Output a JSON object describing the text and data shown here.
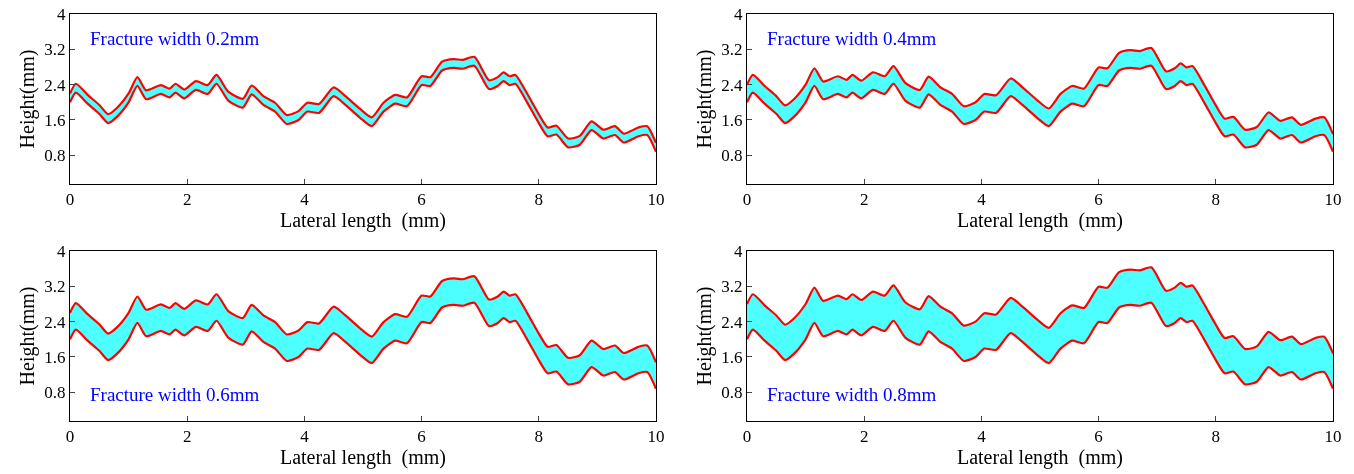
{
  "chart_data": [
    {
      "type": "line",
      "xlabel": "Lateral length  (mm)",
      "ylabel": "Height(mm)",
      "annotations": [
        "Fracture width 0.2mm"
      ],
      "xlim": [
        0,
        10
      ],
      "xticks": [
        0,
        2,
        4,
        6,
        8,
        10
      ],
      "ylim": [
        0.15,
        4
      ],
      "yticks": [
        0.8,
        1.6,
        2.4,
        3.2,
        4
      ],
      "x": [
        0,
        0.1,
        0.3,
        0.5,
        0.65,
        0.8,
        1.0,
        1.15,
        1.3,
        1.55,
        1.7,
        1.8,
        1.95,
        2.15,
        2.35,
        2.5,
        2.7,
        2.95,
        3.1,
        3.3,
        3.5,
        3.7,
        3.9,
        4.05,
        4.25,
        4.5,
        4.7,
        4.95,
        5.15,
        5.35,
        5.55,
        5.75,
        6.0,
        6.15,
        6.35,
        6.55,
        6.7,
        6.9,
        7.15,
        7.3,
        7.4,
        7.5,
        7.6,
        7.8,
        8.0,
        8.15,
        8.3,
        8.5,
        8.7,
        8.9,
        9.1,
        9.3,
        9.45,
        9.7,
        9.85,
        10
      ],
      "series": [
        {
          "color": "#ff0000",
          "values": [
            2.0,
            2.22,
            1.97,
            1.74,
            1.53,
            1.67,
            2.0,
            2.37,
            2.07,
            2.19,
            2.11,
            2.22,
            2.09,
            2.28,
            2.19,
            2.42,
            2.04,
            1.88,
            2.18,
            1.94,
            1.79,
            1.51,
            1.6,
            1.79,
            1.76,
            2.14,
            1.94,
            1.65,
            1.46,
            1.79,
            1.97,
            1.91,
            2.39,
            2.37,
            2.72,
            2.78,
            2.76,
            2.83,
            2.3,
            2.37,
            2.48,
            2.39,
            2.42,
            2.0,
            1.53,
            1.23,
            1.27,
            0.98,
            1.04,
            1.37,
            1.18,
            1.26,
            1.09,
            1.23,
            1.26,
            0.88
          ]
        },
        {
          "type": "area",
          "color": "#4dffff",
          "values": [
            2.2,
            2.42,
            2.17,
            1.94,
            1.73,
            1.87,
            2.2,
            2.57,
            2.27,
            2.39,
            2.31,
            2.42,
            2.29,
            2.48,
            2.39,
            2.62,
            2.24,
            2.08,
            2.38,
            2.14,
            1.99,
            1.71,
            1.8,
            1.99,
            1.96,
            2.34,
            2.14,
            1.85,
            1.66,
            1.99,
            2.17,
            2.11,
            2.59,
            2.57,
            2.92,
            2.98,
            2.96,
            3.03,
            2.5,
            2.57,
            2.68,
            2.59,
            2.62,
            2.2,
            1.73,
            1.43,
            1.47,
            1.18,
            1.24,
            1.57,
            1.38,
            1.46,
            1.29,
            1.43,
            1.46,
            1.08
          ]
        },
        {
          "color": "#ff0000",
          "values": [
            2.2,
            2.42,
            2.17,
            1.94,
            1.73,
            1.87,
            2.2,
            2.57,
            2.27,
            2.39,
            2.31,
            2.42,
            2.29,
            2.48,
            2.39,
            2.62,
            2.24,
            2.08,
            2.38,
            2.14,
            1.99,
            1.71,
            1.8,
            1.99,
            1.96,
            2.34,
            2.14,
            1.85,
            1.66,
            1.99,
            2.17,
            2.11,
            2.59,
            2.57,
            2.92,
            2.98,
            2.96,
            3.03,
            2.5,
            2.57,
            2.68,
            2.59,
            2.62,
            2.2,
            1.73,
            1.43,
            1.47,
            1.18,
            1.24,
            1.57,
            1.38,
            1.46,
            1.29,
            1.43,
            1.46,
            1.08
          ]
        }
      ]
    },
    {
      "type": "line",
      "xlabel": "Lateral length  (mm)",
      "ylabel": "Height(mm)",
      "annotations": [
        "Fracture width 0.4mm"
      ],
      "xlim": [
        0,
        10
      ],
      "xticks": [
        0,
        2,
        4,
        6,
        8,
        10
      ],
      "ylim": [
        0.15,
        4
      ],
      "yticks": [
        0.8,
        1.6,
        2.4,
        3.2,
        4
      ],
      "x": [
        0,
        0.1,
        0.3,
        0.5,
        0.65,
        0.8,
        1.0,
        1.15,
        1.3,
        1.55,
        1.7,
        1.8,
        1.95,
        2.15,
        2.35,
        2.5,
        2.7,
        2.95,
        3.1,
        3.3,
        3.5,
        3.7,
        3.9,
        4.05,
        4.25,
        4.5,
        4.7,
        4.95,
        5.15,
        5.35,
        5.55,
        5.75,
        6.0,
        6.15,
        6.35,
        6.55,
        6.7,
        6.9,
        7.15,
        7.3,
        7.4,
        7.5,
        7.6,
        7.8,
        8.0,
        8.15,
        8.3,
        8.5,
        8.7,
        8.9,
        9.1,
        9.3,
        9.45,
        9.7,
        9.85,
        10
      ],
      "series": [
        {
          "color": "#ff0000",
          "values": [
            2.0,
            2.22,
            1.97,
            1.74,
            1.53,
            1.67,
            2.0,
            2.37,
            2.07,
            2.19,
            2.11,
            2.22,
            2.09,
            2.28,
            2.19,
            2.42,
            2.04,
            1.88,
            2.18,
            1.94,
            1.79,
            1.51,
            1.6,
            1.79,
            1.76,
            2.14,
            1.94,
            1.65,
            1.46,
            1.79,
            1.97,
            1.91,
            2.39,
            2.37,
            2.72,
            2.78,
            2.76,
            2.83,
            2.3,
            2.37,
            2.48,
            2.39,
            2.42,
            2.0,
            1.53,
            1.23,
            1.27,
            0.98,
            1.04,
            1.37,
            1.18,
            1.26,
            1.09,
            1.23,
            1.26,
            0.88
          ]
        },
        {
          "type": "area",
          "color": "#4dffff",
          "values": [
            2.4,
            2.62,
            2.37,
            2.14,
            1.93,
            2.07,
            2.4,
            2.77,
            2.47,
            2.59,
            2.51,
            2.62,
            2.49,
            2.68,
            2.59,
            2.82,
            2.44,
            2.28,
            2.58,
            2.34,
            2.19,
            1.91,
            2.0,
            2.19,
            2.16,
            2.54,
            2.34,
            2.05,
            1.86,
            2.19,
            2.37,
            2.31,
            2.79,
            2.77,
            3.12,
            3.18,
            3.16,
            3.23,
            2.7,
            2.77,
            2.88,
            2.79,
            2.82,
            2.4,
            1.93,
            1.63,
            1.67,
            1.38,
            1.44,
            1.77,
            1.58,
            1.66,
            1.49,
            1.63,
            1.66,
            1.28
          ]
        },
        {
          "color": "#ff0000",
          "values": [
            2.4,
            2.62,
            2.37,
            2.14,
            1.93,
            2.07,
            2.4,
            2.77,
            2.47,
            2.59,
            2.51,
            2.62,
            2.49,
            2.68,
            2.59,
            2.82,
            2.44,
            2.28,
            2.58,
            2.34,
            2.19,
            1.91,
            2.0,
            2.19,
            2.16,
            2.54,
            2.34,
            2.05,
            1.86,
            2.19,
            2.37,
            2.31,
            2.79,
            2.77,
            3.12,
            3.18,
            3.16,
            3.23,
            2.7,
            2.77,
            2.88,
            2.79,
            2.82,
            2.4,
            1.93,
            1.63,
            1.67,
            1.38,
            1.44,
            1.77,
            1.58,
            1.66,
            1.49,
            1.63,
            1.66,
            1.28
          ]
        }
      ]
    },
    {
      "type": "line",
      "xlabel": "Lateral length  (mm)",
      "ylabel": "Height(mm)",
      "annotations": [
        "Fracture width 0.6mm"
      ],
      "xlim": [
        0,
        10
      ],
      "xticks": [
        0,
        2,
        4,
        6,
        8,
        10
      ],
      "ylim": [
        0.15,
        4
      ],
      "yticks": [
        0.8,
        1.6,
        2.4,
        3.2,
        4
      ],
      "x": [
        0,
        0.1,
        0.3,
        0.5,
        0.65,
        0.8,
        1.0,
        1.15,
        1.3,
        1.55,
        1.7,
        1.8,
        1.95,
        2.15,
        2.35,
        2.5,
        2.7,
        2.95,
        3.1,
        3.3,
        3.5,
        3.7,
        3.9,
        4.05,
        4.25,
        4.5,
        4.7,
        4.95,
        5.15,
        5.35,
        5.55,
        5.75,
        6.0,
        6.15,
        6.35,
        6.55,
        6.7,
        6.9,
        7.15,
        7.3,
        7.4,
        7.5,
        7.6,
        7.8,
        8.0,
        8.15,
        8.3,
        8.5,
        8.7,
        8.9,
        9.1,
        9.3,
        9.45,
        9.7,
        9.85,
        10
      ],
      "series": [
        {
          "color": "#ff0000",
          "values": [
            2.0,
            2.22,
            1.97,
            1.74,
            1.53,
            1.67,
            2.0,
            2.37,
            2.07,
            2.19,
            2.11,
            2.22,
            2.09,
            2.28,
            2.19,
            2.42,
            2.04,
            1.88,
            2.18,
            1.94,
            1.79,
            1.51,
            1.6,
            1.79,
            1.76,
            2.14,
            1.94,
            1.65,
            1.46,
            1.79,
            1.97,
            1.91,
            2.39,
            2.37,
            2.72,
            2.78,
            2.76,
            2.83,
            2.3,
            2.37,
            2.48,
            2.39,
            2.42,
            2.0,
            1.53,
            1.23,
            1.27,
            0.98,
            1.04,
            1.37,
            1.18,
            1.26,
            1.09,
            1.23,
            1.26,
            0.88
          ]
        },
        {
          "type": "area",
          "color": "#4dffff",
          "values": [
            2.6,
            2.82,
            2.57,
            2.34,
            2.13,
            2.27,
            2.6,
            2.97,
            2.67,
            2.79,
            2.71,
            2.82,
            2.69,
            2.88,
            2.79,
            3.02,
            2.64,
            2.48,
            2.78,
            2.54,
            2.39,
            2.11,
            2.2,
            2.39,
            2.36,
            2.74,
            2.54,
            2.25,
            2.06,
            2.39,
            2.57,
            2.51,
            2.99,
            2.97,
            3.32,
            3.38,
            3.36,
            3.43,
            2.9,
            2.97,
            3.08,
            2.99,
            3.02,
            2.6,
            2.13,
            1.83,
            1.87,
            1.58,
            1.64,
            1.97,
            1.78,
            1.86,
            1.69,
            1.83,
            1.86,
            1.48
          ]
        },
        {
          "color": "#ff0000",
          "values": [
            2.6,
            2.82,
            2.57,
            2.34,
            2.13,
            2.27,
            2.6,
            2.97,
            2.67,
            2.79,
            2.71,
            2.82,
            2.69,
            2.88,
            2.79,
            3.02,
            2.64,
            2.48,
            2.78,
            2.54,
            2.39,
            2.11,
            2.2,
            2.39,
            2.36,
            2.74,
            2.54,
            2.25,
            2.06,
            2.39,
            2.57,
            2.51,
            2.99,
            2.97,
            3.32,
            3.38,
            3.36,
            3.43,
            2.9,
            2.97,
            3.08,
            2.99,
            3.02,
            2.6,
            2.13,
            1.83,
            1.87,
            1.58,
            1.64,
            1.97,
            1.78,
            1.86,
            1.69,
            1.83,
            1.86,
            1.48
          ]
        }
      ]
    },
    {
      "type": "line",
      "xlabel": "Lateral length  (mm)",
      "ylabel": "Height(mm)",
      "annotations": [
        "Fracture width 0.8mm"
      ],
      "xlim": [
        0,
        10
      ],
      "xticks": [
        0,
        2,
        4,
        6,
        8,
        10
      ],
      "ylim": [
        0.15,
        4
      ],
      "yticks": [
        0.8,
        1.6,
        2.4,
        3.2,
        4
      ],
      "x": [
        0,
        0.1,
        0.3,
        0.5,
        0.65,
        0.8,
        1.0,
        1.15,
        1.3,
        1.55,
        1.7,
        1.8,
        1.95,
        2.15,
        2.35,
        2.5,
        2.7,
        2.95,
        3.1,
        3.3,
        3.5,
        3.7,
        3.9,
        4.05,
        4.25,
        4.5,
        4.7,
        4.95,
        5.15,
        5.35,
        5.55,
        5.75,
        6.0,
        6.15,
        6.35,
        6.55,
        6.7,
        6.9,
        7.15,
        7.3,
        7.4,
        7.5,
        7.6,
        7.8,
        8.0,
        8.15,
        8.3,
        8.5,
        8.7,
        8.9,
        9.1,
        9.3,
        9.45,
        9.7,
        9.85,
        10
      ],
      "series": [
        {
          "color": "#ff0000",
          "values": [
            2.0,
            2.22,
            1.97,
            1.74,
            1.53,
            1.67,
            2.0,
            2.37,
            2.07,
            2.19,
            2.11,
            2.22,
            2.09,
            2.28,
            2.19,
            2.42,
            2.04,
            1.88,
            2.18,
            1.94,
            1.79,
            1.51,
            1.6,
            1.79,
            1.76,
            2.14,
            1.94,
            1.65,
            1.46,
            1.79,
            1.97,
            1.91,
            2.39,
            2.37,
            2.72,
            2.78,
            2.76,
            2.83,
            2.3,
            2.37,
            2.48,
            2.39,
            2.42,
            2.0,
            1.53,
            1.23,
            1.27,
            0.98,
            1.04,
            1.37,
            1.18,
            1.26,
            1.09,
            1.23,
            1.26,
            0.88
          ]
        },
        {
          "type": "area",
          "color": "#4dffff",
          "values": [
            2.8,
            3.02,
            2.77,
            2.54,
            2.33,
            2.47,
            2.8,
            3.17,
            2.87,
            2.99,
            2.91,
            3.02,
            2.89,
            3.08,
            2.99,
            3.22,
            2.84,
            2.68,
            2.98,
            2.74,
            2.59,
            2.31,
            2.4,
            2.59,
            2.56,
            2.94,
            2.74,
            2.45,
            2.26,
            2.59,
            2.77,
            2.71,
            3.19,
            3.17,
            3.52,
            3.58,
            3.56,
            3.63,
            3.1,
            3.17,
            3.28,
            3.19,
            3.22,
            2.8,
            2.33,
            2.03,
            2.07,
            1.78,
            1.84,
            2.17,
            1.98,
            2.06,
            1.89,
            2.03,
            2.06,
            1.68
          ]
        },
        {
          "color": "#ff0000",
          "values": [
            2.8,
            3.02,
            2.77,
            2.54,
            2.33,
            2.47,
            2.8,
            3.17,
            2.87,
            2.99,
            2.91,
            3.02,
            2.89,
            3.08,
            2.99,
            3.22,
            2.84,
            2.68,
            2.98,
            2.74,
            2.59,
            2.31,
            2.4,
            2.59,
            2.56,
            2.94,
            2.74,
            2.45,
            2.26,
            2.59,
            2.77,
            2.71,
            3.19,
            3.17,
            3.52,
            3.58,
            3.56,
            3.63,
            3.1,
            3.17,
            3.28,
            3.19,
            3.22,
            2.8,
            2.33,
            2.03,
            2.07,
            1.78,
            1.84,
            2.17,
            1.98,
            2.06,
            1.89,
            2.03,
            2.06,
            1.68
          ]
        }
      ]
    }
  ]
}
